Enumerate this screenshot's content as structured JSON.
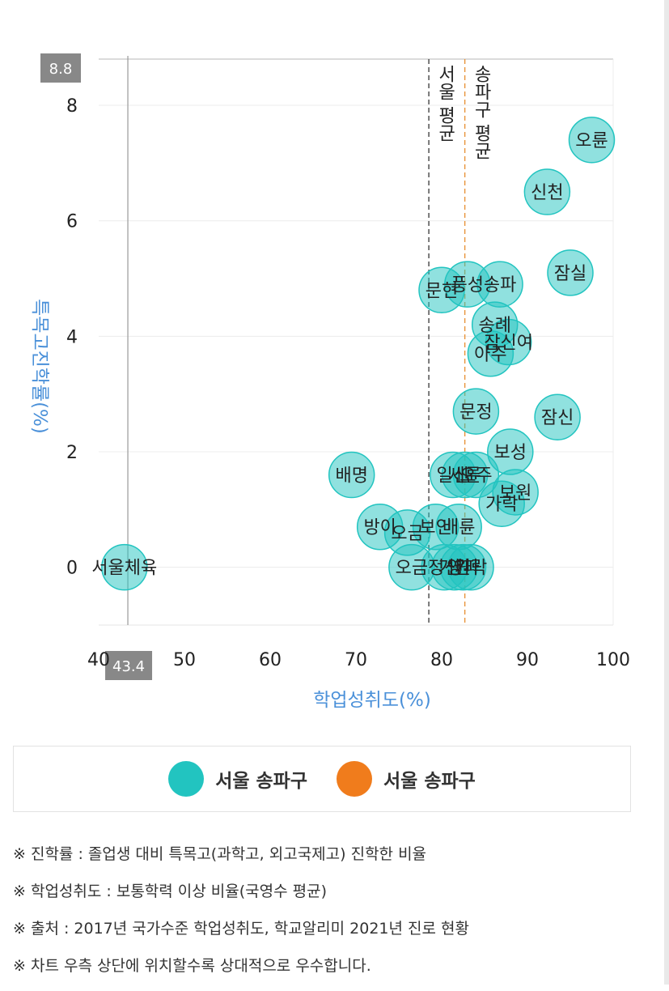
{
  "chart_data": {
    "type": "scatter",
    "xlabel": "학업성취도(%)",
    "ylabel": "특목고진학률(%)",
    "xlim": [
      40,
      100
    ],
    "ylim": [
      -1,
      8.8
    ],
    "x_ticks": [
      "40",
      "50",
      "60",
      "70",
      "80",
      "90",
      "100"
    ],
    "y_ticks": [
      "0",
      "2",
      "4",
      "6",
      "8"
    ],
    "crosshair": {
      "x": 43.4,
      "y": 8.8,
      "x_label": "43.4",
      "y_label": "8.8"
    },
    "reference_lines": [
      {
        "x": 78.5,
        "label": "서울 평균",
        "color": "#444444"
      },
      {
        "x": 82.7,
        "label": "송파구 평균",
        "color": "#e8943a"
      }
    ],
    "points": [
      {
        "label": "오륜",
        "x": 97.5,
        "y": 7.4
      },
      {
        "label": "신천",
        "x": 92.3,
        "y": 6.5
      },
      {
        "label": "잠실",
        "x": 95.0,
        "y": 5.1
      },
      {
        "label": "문현",
        "x": 80.0,
        "y": 4.8
      },
      {
        "label": "풍성",
        "x": 83.0,
        "y": 4.9
      },
      {
        "label": "송파",
        "x": 86.8,
        "y": 4.9
      },
      {
        "label": "송례",
        "x": 86.2,
        "y": 4.2
      },
      {
        "label": "잠신여",
        "x": 87.8,
        "y": 3.9
      },
      {
        "label": "아주",
        "x": 85.7,
        "y": 3.7
      },
      {
        "label": "문정",
        "x": 84.0,
        "y": 2.7
      },
      {
        "label": "잠신",
        "x": 93.5,
        "y": 2.6
      },
      {
        "label": "보성",
        "x": 88.0,
        "y": 2.0
      },
      {
        "label": "배명",
        "x": 69.5,
        "y": 1.6
      },
      {
        "label": "일신",
        "x": 81.3,
        "y": 1.6
      },
      {
        "label": "세륜",
        "x": 82.7,
        "y": 1.6
      },
      {
        "label": "오주",
        "x": 84.0,
        "y": 1.6
      },
      {
        "label": "방이",
        "x": 72.8,
        "y": 0.7
      },
      {
        "label": "오금",
        "x": 76.0,
        "y": 0.6
      },
      {
        "label": "보인",
        "x": 79.3,
        "y": 0.7
      },
      {
        "label": "배륜",
        "x": 82.0,
        "y": 0.7
      },
      {
        "label": "가락",
        "x": 87.0,
        "y": 1.1
      },
      {
        "label": "보원",
        "x": 88.6,
        "y": 1.3
      },
      {
        "label": "서울체육",
        "x": 43.0,
        "y": 0.0
      },
      {
        "label": "오금",
        "x": 76.5,
        "y": 0.0
      },
      {
        "label": "정신",
        "x": 80.3,
        "y": 0.0
      },
      {
        "label": "거원",
        "x": 81.5,
        "y": 0.0
      },
      {
        "label": "영파",
        "x": 82.5,
        "y": 0.0
      },
      {
        "label": "가락",
        "x": 83.4,
        "y": 0.0
      }
    ]
  },
  "legend": {
    "items": [
      {
        "label": "서울 송파구",
        "color": "#22c4c0"
      },
      {
        "label": "서울 송파구",
        "color": "#f07c1c"
      }
    ]
  },
  "notes": [
    "※ 진학률 : 졸업생 대비 특목고(과학고, 외고국제고) 진학한 비율",
    "※ 학업성취도 : 보통학력 이상 비율(국영수 평균)",
    "※ 출처 : 2017년 국가수준 학업성취도, 학교알리미 2021년 진로 현황",
    "※ 차트 우측 상단에 위치할수록 상대적으로 우수합니다."
  ]
}
